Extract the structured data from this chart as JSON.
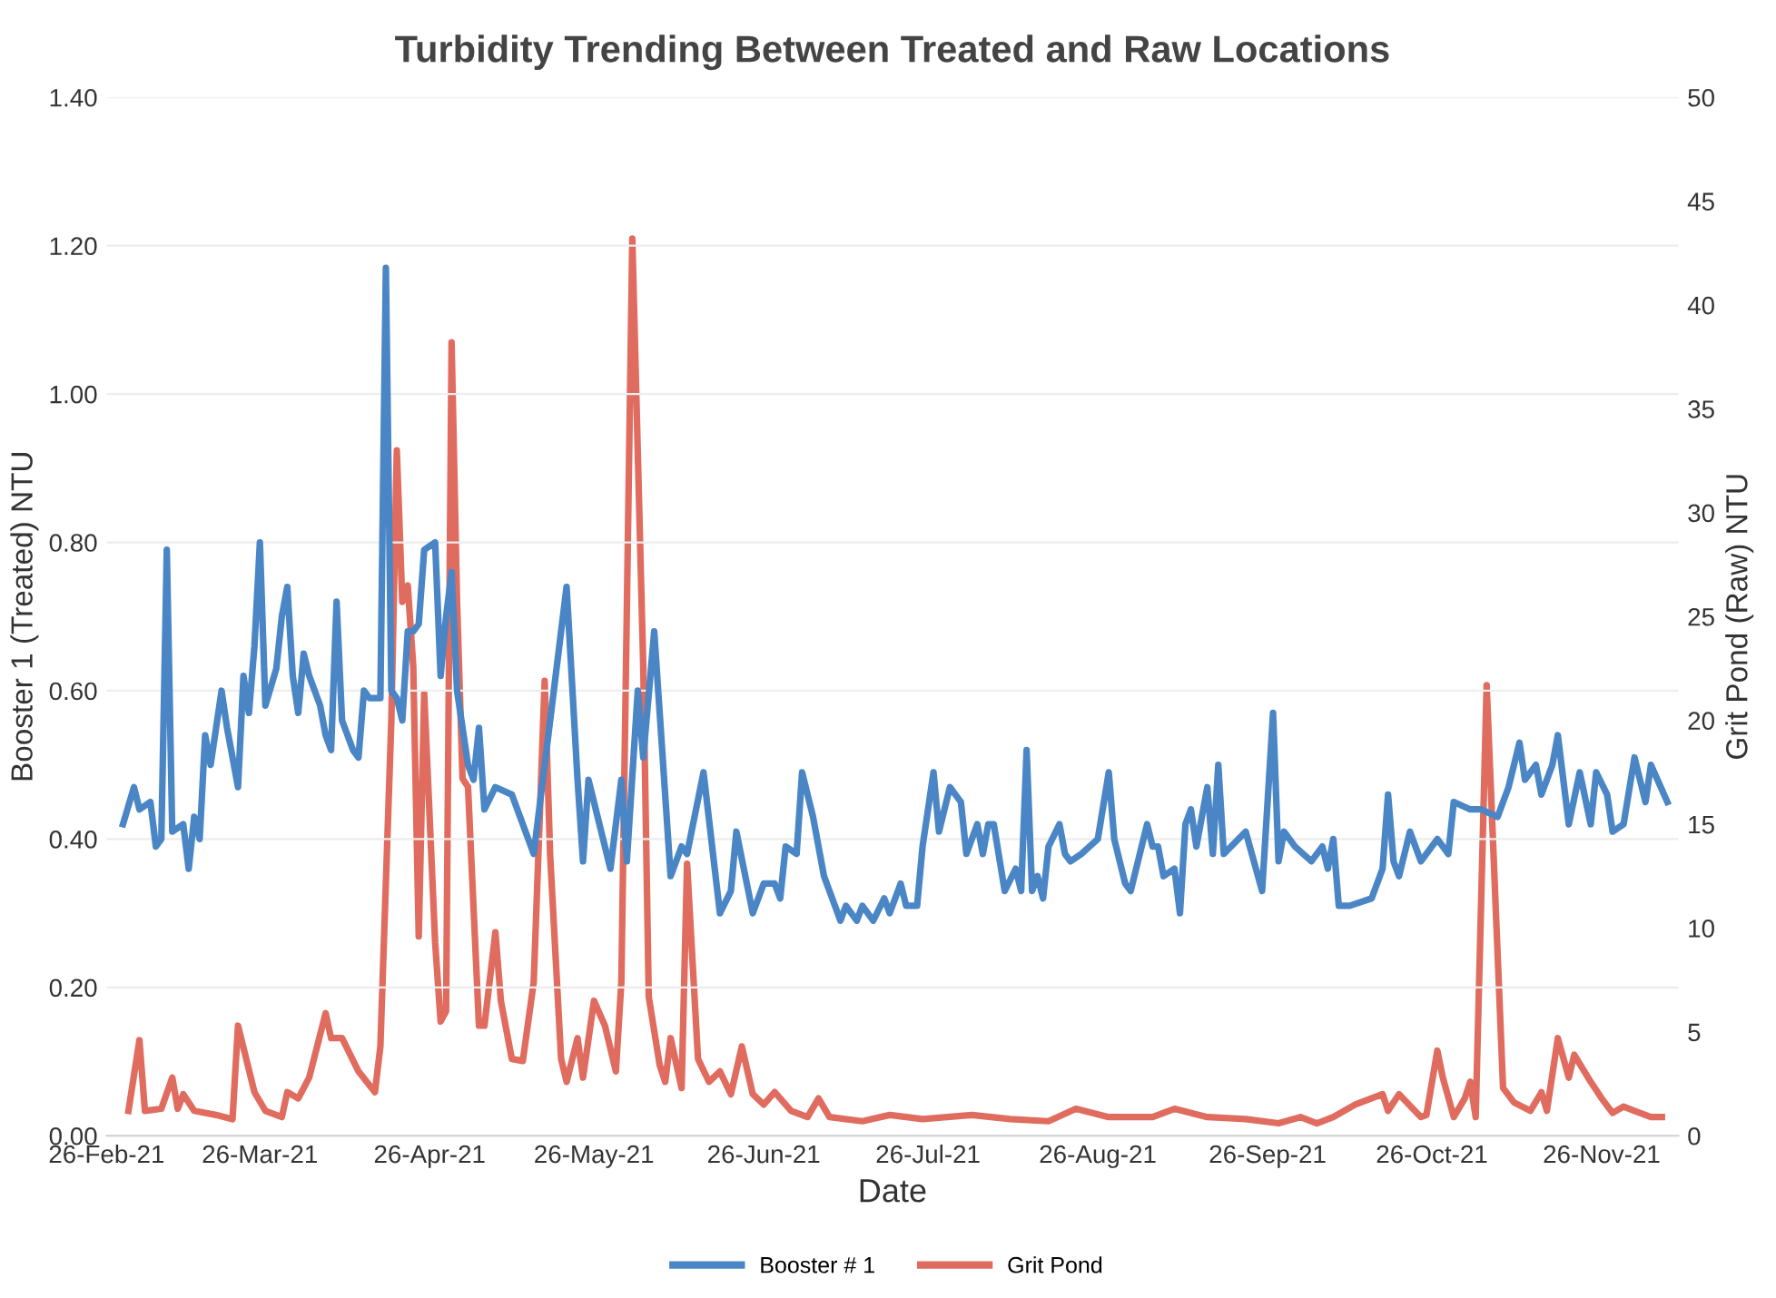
{
  "chart_data": {
    "type": "line",
    "title": "Turbidity Trending Between Treated and Raw Locations",
    "xlabel": "Date",
    "ylabel": "Booster 1 (Treated) NTU",
    "y2label": "Grit Pond (Raw) NTU",
    "xlim": [
      "2021-02-26",
      "2021-12-10"
    ],
    "xticks": [
      {
        "value": "2021-02-26",
        "label": "26-Feb-21"
      },
      {
        "value": "2021-03-26",
        "label": "26-Mar-21"
      },
      {
        "value": "2021-04-26",
        "label": "26-Apr-21"
      },
      {
        "value": "2021-05-26",
        "label": "26-May-21"
      },
      {
        "value": "2021-06-26",
        "label": "26-Jun-21"
      },
      {
        "value": "2021-07-26",
        "label": "26-Jul-21"
      },
      {
        "value": "2021-08-26",
        "label": "26-Aug-21"
      },
      {
        "value": "2021-09-26",
        "label": "26-Sep-21"
      },
      {
        "value": "2021-10-26",
        "label": "26-Oct-21"
      },
      {
        "value": "2021-11-26",
        "label": "26-Nov-21"
      }
    ],
    "ylim": [
      0,
      1.4
    ],
    "yticks": [
      {
        "value": 0,
        "label": "0.00"
      },
      {
        "value": 0.2,
        "label": "0.20"
      },
      {
        "value": 0.4,
        "label": "0.40"
      },
      {
        "value": 0.6,
        "label": "0.60"
      },
      {
        "value": 0.8,
        "label": "0.80"
      },
      {
        "value": 1.0,
        "label": "1.00"
      },
      {
        "value": 1.2,
        "label": "1.20"
      },
      {
        "value": 1.4,
        "label": "1.40"
      }
    ],
    "y2lim": [
      0,
      50
    ],
    "y2ticks": [
      0,
      5,
      10,
      15,
      20,
      25,
      30,
      35,
      40,
      45,
      50
    ],
    "grid": "y",
    "legend": "bottom",
    "marker": "none",
    "line_style": "solid",
    "series": [
      {
        "name": "Booster # 1",
        "color": "#4a86c5",
        "x": [
          "2021-03-01",
          "2021-03-03",
          "2021-03-04",
          "2021-03-06",
          "2021-03-07",
          "2021-03-08",
          "2021-03-09",
          "2021-03-10",
          "2021-03-12",
          "2021-03-13",
          "2021-03-14",
          "2021-03-15",
          "2021-03-16",
          "2021-03-17",
          "2021-03-19",
          "2021-03-20",
          "2021-03-22",
          "2021-03-23",
          "2021-03-24",
          "2021-03-25",
          "2021-03-26",
          "2021-03-27",
          "2021-03-29",
          "2021-03-30",
          "2021-03-31",
          "2021-04-01",
          "2021-04-02",
          "2021-04-03",
          "2021-04-04",
          "2021-04-06",
          "2021-04-07",
          "2021-04-08",
          "2021-04-09",
          "2021-04-10",
          "2021-04-12",
          "2021-04-13",
          "2021-04-14",
          "2021-04-15",
          "2021-04-17",
          "2021-04-18",
          "2021-04-19",
          "2021-04-20",
          "2021-04-21",
          "2021-04-22",
          "2021-04-23",
          "2021-04-24",
          "2021-04-25",
          "2021-04-27",
          "2021-04-28",
          "2021-04-29",
          "2021-04-30",
          "2021-05-01",
          "2021-05-03",
          "2021-05-04",
          "2021-05-05",
          "2021-05-06",
          "2021-05-08",
          "2021-05-11",
          "2021-05-15",
          "2021-05-21",
          "2021-05-23",
          "2021-05-24",
          "2021-05-25",
          "2021-05-29",
          "2021-05-31",
          "2021-06-01",
          "2021-06-03",
          "2021-06-04",
          "2021-06-06",
          "2021-06-09",
          "2021-06-11",
          "2021-06-12",
          "2021-06-15",
          "2021-06-18",
          "2021-06-20",
          "2021-06-21",
          "2021-06-24",
          "2021-06-26",
          "2021-06-28",
          "2021-06-29",
          "2021-06-30",
          "2021-07-02",
          "2021-07-03",
          "2021-07-05",
          "2021-07-07",
          "2021-07-10",
          "2021-07-11",
          "2021-07-13",
          "2021-07-14",
          "2021-07-16",
          "2021-07-18",
          "2021-07-19",
          "2021-07-21",
          "2021-07-22",
          "2021-07-24",
          "2021-07-25",
          "2021-07-27",
          "2021-07-28",
          "2021-07-30",
          "2021-08-01",
          "2021-08-02",
          "2021-08-04",
          "2021-08-05",
          "2021-08-06",
          "2021-08-07",
          "2021-08-09",
          "2021-08-11",
          "2021-08-12",
          "2021-08-13",
          "2021-08-14",
          "2021-08-15",
          "2021-08-16",
          "2021-08-17",
          "2021-08-19",
          "2021-08-20",
          "2021-08-21",
          "2021-08-23",
          "2021-08-26",
          "2021-08-28",
          "2021-08-29",
          "2021-08-31",
          "2021-09-01",
          "2021-09-04",
          "2021-09-05",
          "2021-09-06",
          "2021-09-07",
          "2021-09-09",
          "2021-09-10",
          "2021-09-11",
          "2021-09-12",
          "2021-09-13",
          "2021-09-15",
          "2021-09-16",
          "2021-09-17",
          "2021-09-18",
          "2021-09-22",
          "2021-09-25",
          "2021-09-27",
          "2021-09-28",
          "2021-09-29",
          "2021-10-01",
          "2021-10-04",
          "2021-10-06",
          "2021-10-07",
          "2021-10-08",
          "2021-10-09",
          "2021-10-11",
          "2021-10-15",
          "2021-10-17",
          "2021-10-18",
          "2021-10-19",
          "2021-10-20",
          "2021-10-22",
          "2021-10-24",
          "2021-10-27",
          "2021-10-29",
          "2021-10-30",
          "2021-11-02",
          "2021-11-04",
          "2021-11-07",
          "2021-11-09",
          "2021-11-11",
          "2021-11-12",
          "2021-11-14",
          "2021-11-15",
          "2021-11-17",
          "2021-11-18",
          "2021-11-20",
          "2021-11-22",
          "2021-11-24",
          "2021-11-25",
          "2021-11-27",
          "2021-11-28",
          "2021-11-30",
          "2021-12-02",
          "2021-12-04",
          "2021-12-05",
          "2021-12-08"
        ],
        "values": [
          0.42,
          0.47,
          0.44,
          0.45,
          0.39,
          0.4,
          0.79,
          0.41,
          0.42,
          0.36,
          0.43,
          0.4,
          0.54,
          0.5,
          0.6,
          0.55,
          0.47,
          0.62,
          0.57,
          0.66,
          0.8,
          0.58,
          0.63,
          0.7,
          0.74,
          0.62,
          0.57,
          0.65,
          0.62,
          0.58,
          0.54,
          0.52,
          0.72,
          0.56,
          0.52,
          0.51,
          0.6,
          0.59,
          0.59,
          1.17,
          0.6,
          0.59,
          0.56,
          0.68,
          0.68,
          0.69,
          0.79,
          0.8,
          0.62,
          0.7,
          0.76,
          0.6,
          0.5,
          0.48,
          0.55,
          0.44,
          0.47,
          0.46,
          0.38,
          0.74,
          0.48,
          0.37,
          0.48,
          0.36,
          0.48,
          0.37,
          0.6,
          0.51,
          0.68,
          0.35,
          0.39,
          0.38,
          0.49,
          0.3,
          0.33,
          0.41,
          0.3,
          0.34,
          0.34,
          0.32,
          0.39,
          0.38,
          0.49,
          0.43,
          0.35,
          0.29,
          0.31,
          0.29,
          0.31,
          0.29,
          0.32,
          0.3,
          0.34,
          0.31,
          0.31,
          0.39,
          0.49,
          0.41,
          0.47,
          0.45,
          0.38,
          0.42,
          0.38,
          0.42,
          0.42,
          0.33,
          0.36,
          0.33,
          0.52,
          0.33,
          0.35,
          0.32,
          0.39,
          0.42,
          0.38,
          0.37,
          0.38,
          0.4,
          0.49,
          0.4,
          0.34,
          0.33,
          0.42,
          0.39,
          0.39,
          0.35,
          0.36,
          0.3,
          0.42,
          0.44,
          0.39,
          0.47,
          0.38,
          0.5,
          0.38,
          0.41,
          0.33,
          0.57,
          0.37,
          0.41,
          0.39,
          0.37,
          0.39,
          0.36,
          0.4,
          0.31,
          0.31,
          0.32,
          0.36,
          0.46,
          0.37,
          0.35,
          0.41,
          0.37,
          0.4,
          0.38,
          0.45,
          0.44,
          0.44,
          0.43,
          0.47,
          0.53,
          0.48,
          0.5,
          0.46,
          0.5,
          0.54,
          0.42,
          0.49,
          0.42,
          0.49,
          0.46,
          0.41,
          0.42,
          0.51,
          0.45,
          0.5,
          0.45
        ]
      },
      {
        "name": "Grit Pond",
        "color": "#e06c5f",
        "axis": "y2",
        "x": [
          "2021-03-02",
          "2021-03-04",
          "2021-03-05",
          "2021-03-08",
          "2021-03-10",
          "2021-03-11",
          "2021-03-12",
          "2021-03-14",
          "2021-03-18",
          "2021-03-21",
          "2021-03-22",
          "2021-03-25",
          "2021-03-27",
          "2021-03-30",
          "2021-03-31",
          "2021-04-02",
          "2021-04-04",
          "2021-04-07",
          "2021-04-08",
          "2021-04-10",
          "2021-04-13",
          "2021-04-16",
          "2021-04-17",
          "2021-04-19",
          "2021-04-20",
          "2021-04-21",
          "2021-04-22",
          "2021-04-23",
          "2021-04-24",
          "2021-04-25",
          "2021-04-27",
          "2021-04-28",
          "2021-04-29",
          "2021-04-30",
          "2021-05-01",
          "2021-05-02",
          "2021-05-03",
          "2021-05-05",
          "2021-05-06",
          "2021-05-08",
          "2021-05-09",
          "2021-05-11",
          "2021-05-13",
          "2021-05-15",
          "2021-05-17",
          "2021-05-18",
          "2021-05-20",
          "2021-05-21",
          "2021-05-23",
          "2021-05-24",
          "2021-05-26",
          "2021-05-28",
          "2021-05-30",
          "2021-05-31",
          "2021-06-02",
          "2021-06-04",
          "2021-06-05",
          "2021-06-07",
          "2021-06-08",
          "2021-06-09",
          "2021-06-11",
          "2021-06-12",
          "2021-06-14",
          "2021-06-16",
          "2021-06-18",
          "2021-06-20",
          "2021-06-22",
          "2021-06-24",
          "2021-06-26",
          "2021-06-28",
          "2021-07-01",
          "2021-07-04",
          "2021-07-06",
          "2021-07-08",
          "2021-07-14",
          "2021-07-19",
          "2021-07-25",
          "2021-08-03",
          "2021-08-10",
          "2021-08-17",
          "2021-08-22",
          "2021-08-28",
          "2021-09-05",
          "2021-09-09",
          "2021-09-15",
          "2021-09-22",
          "2021-09-28",
          "2021-10-02",
          "2021-10-05",
          "2021-10-08",
          "2021-10-12",
          "2021-10-17",
          "2021-10-18",
          "2021-10-20",
          "2021-10-24",
          "2021-10-25",
          "2021-10-27",
          "2021-10-28",
          "2021-10-30",
          "2021-11-01",
          "2021-11-02",
          "2021-11-03",
          "2021-11-05",
          "2021-11-08",
          "2021-11-10",
          "2021-11-13",
          "2021-11-15",
          "2021-11-16",
          "2021-11-18",
          "2021-11-20",
          "2021-11-21",
          "2021-11-24",
          "2021-11-26",
          "2021-11-28",
          "2021-11-30",
          "2021-12-02",
          "2021-12-05",
          "2021-12-07"
        ],
        "values": [
          1.2,
          4.6,
          1.2,
          1.3,
          2.8,
          1.3,
          2.0,
          1.2,
          1.0,
          0.8,
          5.3,
          2.1,
          1.2,
          0.9,
          2.1,
          1.8,
          2.8,
          5.9,
          4.7,
          4.7,
          3.1,
          2.1,
          4.3,
          20.0,
          33.0,
          25.7,
          26.5,
          22.6,
          9.6,
          21.3,
          9.3,
          5.5,
          6.0,
          38.2,
          25.7,
          17.2,
          16.8,
          5.3,
          5.3,
          9.8,
          6.5,
          3.7,
          3.6,
          7.4,
          21.9,
          13.5,
          3.7,
          2.6,
          4.7,
          2.8,
          6.5,
          5.3,
          3.1,
          7.4,
          43.2,
          22.6,
          6.7,
          3.4,
          2.6,
          4.7,
          2.3,
          13.1,
          3.7,
          2.6,
          3.1,
          2.0,
          4.3,
          2.0,
          1.5,
          2.1,
          1.2,
          0.9,
          1.8,
          0.9,
          0.7,
          1.0,
          0.8,
          1.0,
          0.8,
          0.7,
          1.3,
          0.9,
          0.9,
          1.3,
          0.9,
          0.8,
          0.6,
          0.9,
          0.6,
          0.9,
          1.5,
          2.0,
          1.2,
          2.0,
          0.9,
          1.0,
          4.1,
          2.8,
          0.9,
          1.8,
          2.6,
          0.9,
          21.7,
          2.3,
          1.6,
          1.2,
          2.1,
          1.2,
          4.7,
          2.8,
          3.9,
          2.6,
          1.8,
          1.1,
          1.4,
          1.2,
          0.9,
          0.9
        ]
      }
    ]
  }
}
